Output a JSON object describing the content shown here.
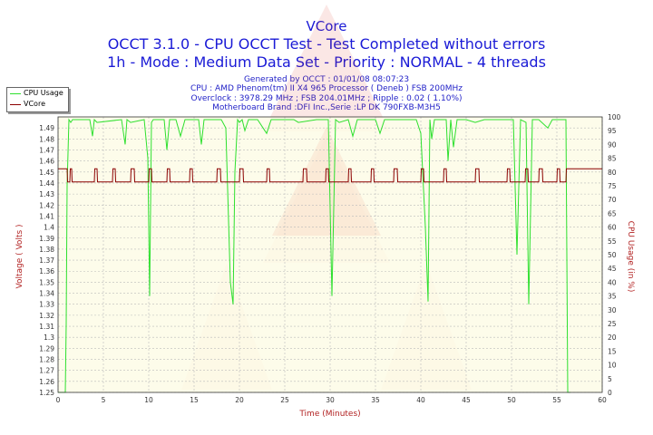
{
  "titles": {
    "title": "VCore",
    "line2": "OCCT 3.1.0 - CPU OCCT Test - Test Completed without errors",
    "line3": "1h - Mode : Medium Data Set - Priority : NORMAL - 4 threads"
  },
  "subtitles": {
    "generated": "Generated by OCCT : 01/01/08 08:07:23",
    "cpu": "CPU : AMD Phenom(tm) II X4 965 Processor ( Deneb ) FSB 200MHz",
    "overclock": "Overclock : 3978.29 MHz ; FSB 204.01MHz ; Ripple : 0.02 ( 1.10%)",
    "motherboard": "Motherboard Brand :DFI Inc.,Serie :LP DK 790FXB-M3H5"
  },
  "colors": {
    "plot_bg": "#fdfbe6",
    "grid": "#bbbbbb",
    "cpu_usage": "#2ee02e",
    "vcore": "#8b0000",
    "axis_label": "#b22222"
  },
  "chart_data": {
    "type": "line",
    "title": "VCore",
    "xlabel": "Time (Minutes)",
    "ylabel": "Voltage ( Volts )",
    "ylabel_right": "CPU Usage (in %)",
    "xlim": [
      0,
      60
    ],
    "ylim": [
      1.25,
      1.5
    ],
    "ylim_right": [
      0,
      100
    ],
    "x_ticks": [
      0,
      5,
      10,
      15,
      20,
      25,
      30,
      35,
      40,
      45,
      50,
      55,
      60
    ],
    "y_ticks": [
      1.25,
      1.26,
      1.27,
      1.28,
      1.29,
      1.3,
      1.31,
      1.32,
      1.33,
      1.34,
      1.35,
      1.36,
      1.37,
      1.38,
      1.39,
      1.4,
      1.41,
      1.42,
      1.43,
      1.44,
      1.45,
      1.46,
      1.47,
      1.48,
      1.49
    ],
    "y_ticks_right": [
      0,
      5,
      10,
      15,
      20,
      25,
      30,
      35,
      40,
      45,
      50,
      55,
      60,
      65,
      70,
      75,
      80,
      85,
      90,
      95,
      100
    ],
    "grid": true,
    "legend_position": "top-left",
    "series": [
      {
        "name": "CPU Usage",
        "axis": "right",
        "x": [
          0,
          0.8,
          0.9,
          1.0,
          1.2,
          1.4,
          1.6,
          3.5,
          3.8,
          4.0,
          4.3,
          7.0,
          7.4,
          7.6,
          8.0,
          9.5,
          9.9,
          10.1,
          10.3,
          10.5,
          11.7,
          12.0,
          12.3,
          13.0,
          13.5,
          14.0,
          15.5,
          15.8,
          16.1,
          18.0,
          18.5,
          19.0,
          19.3,
          19.5,
          19.8,
          20.0,
          20.3,
          20.6,
          21.0,
          22.0,
          23.0,
          23.5,
          24.0,
          26.0,
          26.5,
          28.5,
          29.0,
          29.8,
          30.2,
          30.6,
          31.0,
          32.0,
          32.5,
          33.0,
          34.0,
          35.0,
          35.5,
          36.0,
          38.0,
          39.5,
          40.0,
          40.5,
          40.8,
          41.0,
          41.2,
          41.5,
          42.0,
          42.8,
          43.0,
          43.3,
          43.6,
          44.0,
          45.0,
          46.0,
          47.0,
          49.0,
          49.8,
          50.2,
          50.6,
          51.0,
          51.6,
          51.9,
          52.3,
          53.0,
          54.0,
          54.5,
          55.0,
          56.0,
          56.2,
          56.5
        ],
        "values": [
          0,
          0,
          25,
          75,
          99,
          98,
          99,
          99,
          93,
          99,
          98,
          99,
          90,
          99,
          98,
          99,
          85,
          35,
          98,
          99,
          99,
          88,
          99,
          99,
          93,
          99,
          99,
          90,
          99,
          99,
          96,
          40,
          32,
          80,
          99,
          98,
          99,
          95,
          99,
          99,
          94,
          99,
          99,
          99,
          98,
          99,
          99,
          99,
          35,
          99,
          98,
          99,
          93,
          99,
          99,
          99,
          94,
          99,
          99,
          99,
          94,
          60,
          33,
          99,
          92,
          99,
          99,
          99,
          84,
          99,
          89,
          99,
          99,
          98,
          99,
          99,
          99,
          99,
          50,
          99,
          98,
          32,
          99,
          99,
          96,
          99,
          99,
          99,
          0,
          0
        ]
      },
      {
        "name": "VCore",
        "axis": "left",
        "x": [
          0,
          1.0,
          1.05,
          1.3,
          1.35,
          1.5,
          1.55,
          4.0,
          4.05,
          4.3,
          4.35,
          6.0,
          6.05,
          6.3,
          6.35,
          8.0,
          8.05,
          8.4,
          8.45,
          10.0,
          10.05,
          10.3,
          10.35,
          12.0,
          12.05,
          12.3,
          12.35,
          14.5,
          14.55,
          14.8,
          14.85,
          17.5,
          17.55,
          17.9,
          17.95,
          20.0,
          20.05,
          20.4,
          20.45,
          23.0,
          23.05,
          23.3,
          23.35,
          27.0,
          27.05,
          27.4,
          27.45,
          29.5,
          29.55,
          29.8,
          29.85,
          32.0,
          32.05,
          32.3,
          32.35,
          34.5,
          34.55,
          34.8,
          34.85,
          37.0,
          37.05,
          37.4,
          37.45,
          40.0,
          40.05,
          40.3,
          40.35,
          42.5,
          42.55,
          42.8,
          42.85,
          46.0,
          46.05,
          46.4,
          46.45,
          49.5,
          49.55,
          49.8,
          49.85,
          51.5,
          51.55,
          51.8,
          51.85,
          53.0,
          53.05,
          53.4,
          53.45,
          55.0,
          55.05,
          55.3,
          55.35,
          56.0,
          56.05,
          60.0
        ],
        "values": [
          1.453,
          1.453,
          1.441,
          1.441,
          1.453,
          1.453,
          1.441,
          1.441,
          1.453,
          1.453,
          1.441,
          1.441,
          1.453,
          1.453,
          1.441,
          1.441,
          1.453,
          1.453,
          1.441,
          1.441,
          1.453,
          1.453,
          1.441,
          1.441,
          1.453,
          1.453,
          1.441,
          1.441,
          1.453,
          1.453,
          1.441,
          1.441,
          1.453,
          1.453,
          1.441,
          1.441,
          1.453,
          1.453,
          1.441,
          1.441,
          1.453,
          1.453,
          1.441,
          1.441,
          1.453,
          1.453,
          1.441,
          1.441,
          1.453,
          1.453,
          1.441,
          1.441,
          1.453,
          1.453,
          1.441,
          1.441,
          1.453,
          1.453,
          1.441,
          1.441,
          1.453,
          1.453,
          1.441,
          1.441,
          1.453,
          1.453,
          1.441,
          1.441,
          1.453,
          1.453,
          1.441,
          1.441,
          1.453,
          1.453,
          1.441,
          1.441,
          1.453,
          1.453,
          1.441,
          1.441,
          1.453,
          1.453,
          1.441,
          1.441,
          1.453,
          1.453,
          1.441,
          1.441,
          1.453,
          1.453,
          1.441,
          1.441,
          1.453,
          1.453
        ]
      }
    ]
  }
}
